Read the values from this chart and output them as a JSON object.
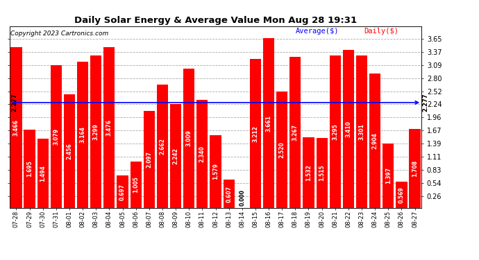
{
  "title": "Daily Solar Energy & Average Value Mon Aug 28 19:31",
  "copyright": "Copyright 2023 Cartronics.com",
  "average_label": "Average($)",
  "daily_label": "Daily($)",
  "average_value": 2.277,
  "categories": [
    "07-28",
    "07-29",
    "07-30",
    "07-31",
    "08-01",
    "08-02",
    "08-03",
    "08-04",
    "08-05",
    "08-06",
    "08-07",
    "08-08",
    "08-09",
    "08-10",
    "08-11",
    "08-12",
    "08-13",
    "08-14",
    "08-15",
    "08-16",
    "08-17",
    "08-18",
    "08-19",
    "08-20",
    "08-21",
    "08-22",
    "08-23",
    "08-24",
    "08-25",
    "08-26",
    "08-27"
  ],
  "values": [
    3.466,
    1.695,
    1.494,
    3.079,
    2.456,
    3.164,
    3.299,
    3.476,
    0.697,
    1.005,
    2.097,
    2.662,
    2.242,
    3.009,
    2.34,
    1.579,
    0.607,
    0.0,
    3.212,
    3.661,
    2.52,
    3.267,
    1.532,
    1.515,
    3.295,
    3.41,
    3.301,
    2.904,
    1.397,
    0.569,
    1.708
  ],
  "bar_color": "#ff0000",
  "avg_line_color": "#0000ff",
  "background_color": "#ffffff",
  "plot_bg_color": "#ffffff",
  "grid_color": "#aaaaaa",
  "title_color": "#000000",
  "copyright_color": "#000000",
  "avg_label_color": "#0000ff",
  "daily_label_color": "#ff0000",
  "ymin": 0.0,
  "ymax": 3.93,
  "yticks": [
    0.26,
    0.54,
    0.83,
    1.11,
    1.39,
    1.67,
    1.96,
    2.24,
    2.52,
    2.8,
    3.09,
    3.37,
    3.65
  ],
  "title_fontsize": 9.5,
  "bar_label_fontsize": 5.5,
  "tick_fontsize": 7.0,
  "copyright_fontsize": 6.5
}
